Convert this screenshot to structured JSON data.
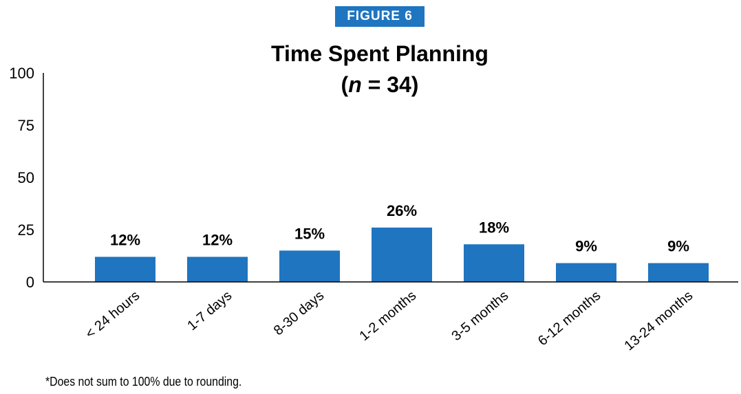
{
  "figure_label": "FIGURE 6",
  "footnote": "*Does not sum to 100% due to rounding.",
  "colors": {
    "bar": "#1f75c0",
    "label_bg": "#1f75c0",
    "axis": "#000000"
  },
  "chart_data": {
    "type": "bar",
    "title": "Time Spent Planning",
    "subtitle_prefix": "(",
    "subtitle_italic": "n",
    "subtitle_suffix": " = 34)",
    "xlabel": "",
    "ylabel": "",
    "categories": [
      "< 24 hours",
      "1-7 days",
      "8-30 days",
      "1-2 months",
      "3-5 months",
      "6-12 months",
      "13-24 months"
    ],
    "values": [
      12,
      12,
      15,
      26,
      18,
      9,
      9
    ],
    "data_labels": [
      "12%",
      "12%",
      "15%",
      "26%",
      "18%",
      "9%",
      "9%"
    ],
    "ylim": [
      0,
      100
    ],
    "yticks": [
      0,
      25,
      50,
      75,
      100
    ],
    "ytick_labels": [
      "0",
      "25",
      "50",
      "75",
      "100"
    ],
    "grid": false,
    "legend": "none"
  }
}
